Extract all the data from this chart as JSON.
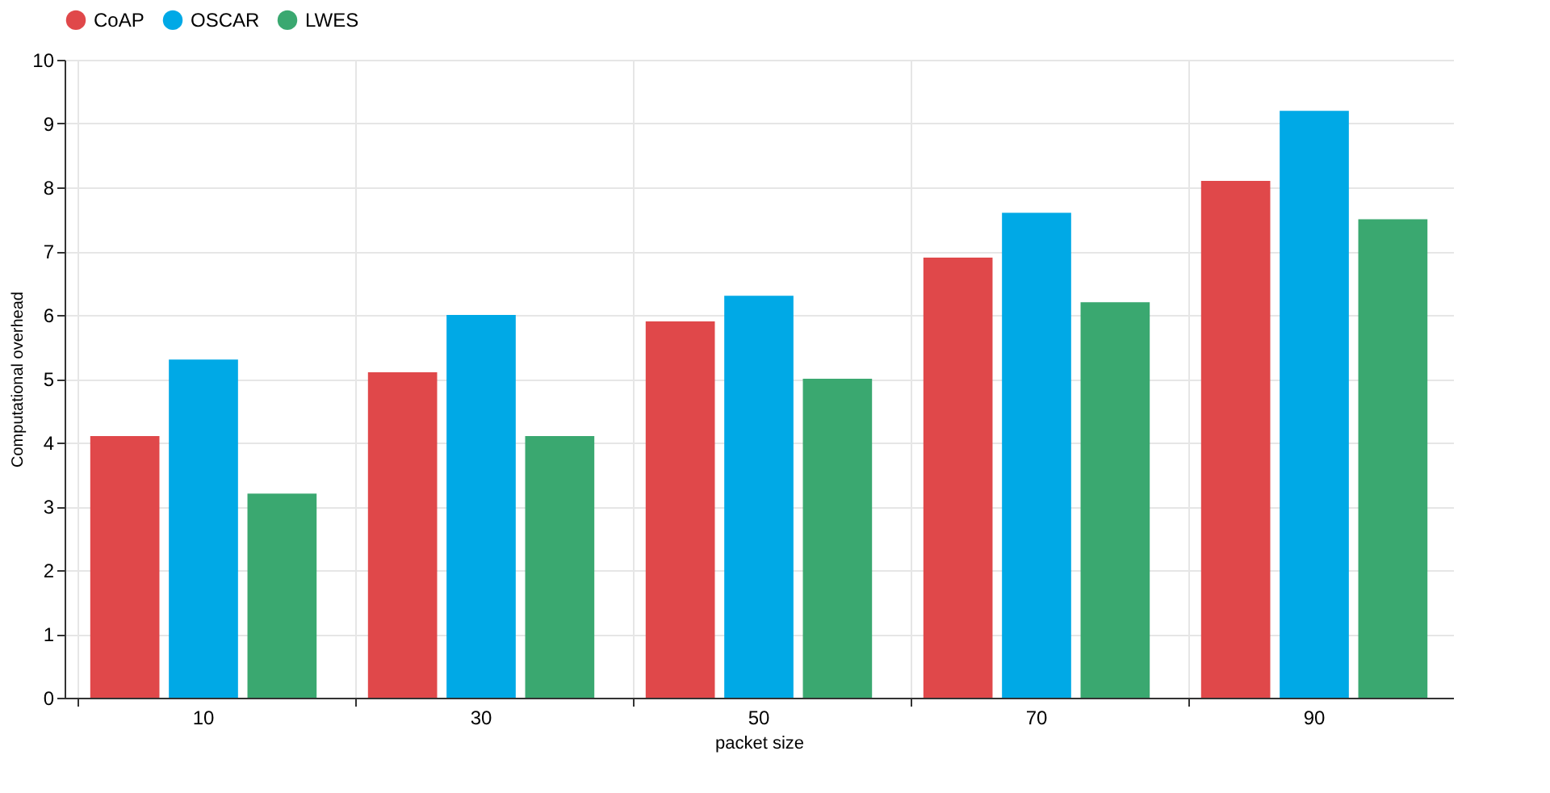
{
  "chart_data": {
    "type": "bar",
    "xlabel": "packet size",
    "ylabel": "Computational overhead",
    "categories": [
      "10",
      "30",
      "50",
      "70",
      "90"
    ],
    "series": [
      {
        "name": "CoAP",
        "color": "#e0484a",
        "values": [
          4.1,
          5.1,
          5.9,
          6.9,
          8.1
        ]
      },
      {
        "name": "OSCAR",
        "color": "#00a9e6",
        "values": [
          5.3,
          6.0,
          6.3,
          7.6,
          9.2
        ]
      },
      {
        "name": "LWES",
        "color": "#3aa870",
        "values": [
          3.2,
          4.1,
          5.0,
          6.2,
          7.5
        ]
      }
    ],
    "ylim": [
      0,
      10
    ],
    "yticks": [
      0,
      1,
      2,
      3,
      4,
      5,
      6,
      7,
      8,
      9,
      10
    ],
    "grid": true,
    "legend": "top"
  }
}
